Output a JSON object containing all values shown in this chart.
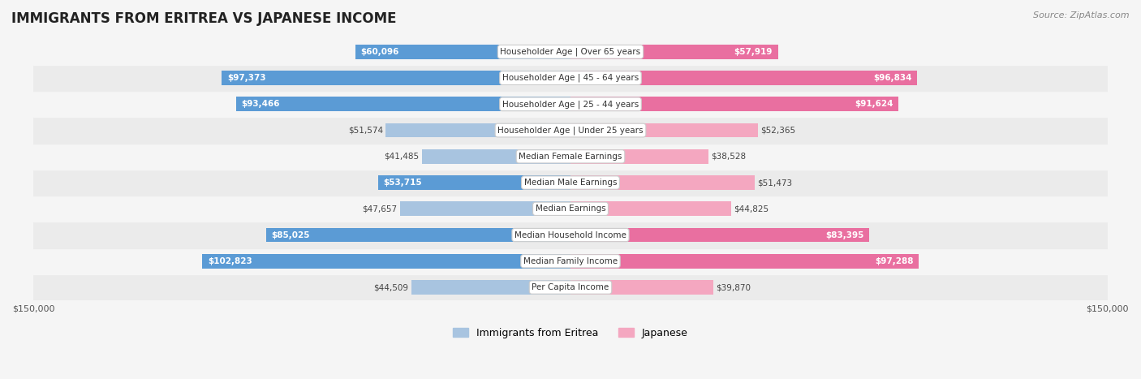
{
  "title": "IMMIGRANTS FROM ERITREA VS JAPANESE INCOME",
  "source": "Source: ZipAtlas.com",
  "categories": [
    "Per Capita Income",
    "Median Family Income",
    "Median Household Income",
    "Median Earnings",
    "Median Male Earnings",
    "Median Female Earnings",
    "Householder Age | Under 25 years",
    "Householder Age | 25 - 44 years",
    "Householder Age | 45 - 64 years",
    "Householder Age | Over 65 years"
  ],
  "eritrea_values": [
    44509,
    102823,
    85025,
    47657,
    53715,
    41485,
    51574,
    93466,
    97373,
    60096
  ],
  "japanese_values": [
    39870,
    97288,
    83395,
    44825,
    51473,
    38528,
    52365,
    91624,
    96834,
    57919
  ],
  "eritrea_labels": [
    "$44,509",
    "$102,823",
    "$85,025",
    "$47,657",
    "$53,715",
    "$41,485",
    "$51,574",
    "$93,466",
    "$97,373",
    "$60,096"
  ],
  "japanese_labels": [
    "$39,870",
    "$97,288",
    "$83,395",
    "$44,825",
    "$51,473",
    "$38,528",
    "$52,365",
    "$91,624",
    "$96,834",
    "$57,919"
  ],
  "eritrea_color_light": "#a8c4e0",
  "eritrea_color_dark": "#5b9bd5",
  "japanese_color_light": "#f4a7c0",
  "japanese_color_dark": "#e96fa0",
  "max_value": 150000,
  "bar_height": 0.55,
  "bg_color": "#f5f5f5",
  "row_bg_even": "#ebebeb",
  "row_bg_odd": "#f5f5f5"
}
